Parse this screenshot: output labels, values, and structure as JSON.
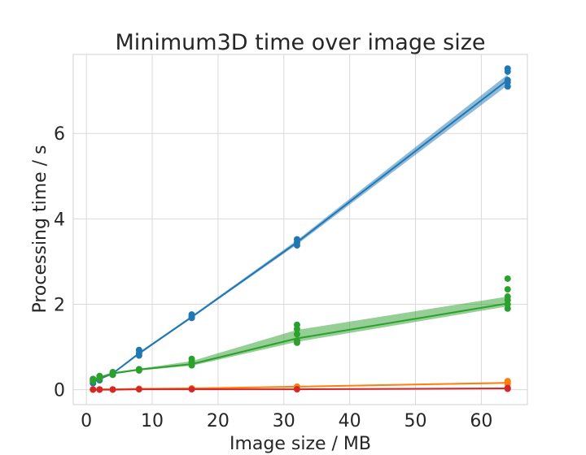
{
  "chart_data": {
    "type": "line",
    "title": "Minimum3D time over image size",
    "xlabel": "Image size / MB",
    "ylabel": "Processing time / s",
    "xlim": [
      -2,
      67
    ],
    "ylim": [
      -0.35,
      7.85
    ],
    "xticks": [
      0,
      10,
      20,
      30,
      40,
      50,
      60
    ],
    "yticks": [
      0,
      2,
      4,
      6
    ],
    "grid": true,
    "legend": "none",
    "x": [
      1,
      2,
      4,
      8,
      16,
      32,
      64
    ],
    "series": [
      {
        "color": "#1f77b4",
        "mean": [
          0.2,
          0.25,
          0.38,
          0.85,
          1.7,
          3.45,
          7.25
        ],
        "ci_low": [
          0.18,
          0.23,
          0.36,
          0.82,
          1.68,
          3.4,
          7.13
        ],
        "ci_high": [
          0.22,
          0.27,
          0.4,
          0.88,
          1.73,
          3.5,
          7.38
        ],
        "points": [
          [
            1,
            0.15
          ],
          [
            1,
            0.2
          ],
          [
            1,
            0.25
          ],
          [
            2,
            0.22
          ],
          [
            2,
            0.27
          ],
          [
            4,
            0.35
          ],
          [
            4,
            0.4
          ],
          [
            8,
            0.8
          ],
          [
            8,
            0.85
          ],
          [
            8,
            0.93
          ],
          [
            16,
            1.68
          ],
          [
            16,
            1.72
          ],
          [
            16,
            1.76
          ],
          [
            32,
            3.38
          ],
          [
            32,
            3.45
          ],
          [
            32,
            3.52
          ],
          [
            64,
            7.1
          ],
          [
            64,
            7.2
          ],
          [
            64,
            7.25
          ],
          [
            64,
            7.45
          ],
          [
            64,
            7.52
          ]
        ]
      },
      {
        "color": "#2ca02c",
        "mean": [
          0.22,
          0.28,
          0.38,
          0.47,
          0.6,
          1.2,
          2.02
        ],
        "ci_low": [
          0.2,
          0.25,
          0.36,
          0.45,
          0.56,
          1.12,
          1.95
        ],
        "ci_high": [
          0.25,
          0.31,
          0.41,
          0.49,
          0.67,
          1.4,
          2.18
        ],
        "points": [
          [
            1,
            0.2
          ],
          [
            1,
            0.25
          ],
          [
            2,
            0.25
          ],
          [
            2,
            0.32
          ],
          [
            4,
            0.35
          ],
          [
            4,
            0.41
          ],
          [
            8,
            0.45
          ],
          [
            8,
            0.48
          ],
          [
            16,
            0.57
          ],
          [
            16,
            0.65
          ],
          [
            16,
            0.72
          ],
          [
            32,
            1.1
          ],
          [
            32,
            1.15
          ],
          [
            32,
            1.3
          ],
          [
            32,
            1.42
          ],
          [
            32,
            1.52
          ],
          [
            64,
            1.9
          ],
          [
            64,
            2.0
          ],
          [
            64,
            2.1
          ],
          [
            64,
            2.18
          ],
          [
            64,
            2.35
          ],
          [
            64,
            2.6
          ]
        ]
      },
      {
        "color": "#ff7f0e",
        "mean": [
          0.01,
          0.01,
          0.01,
          0.02,
          0.03,
          0.07,
          0.16
        ],
        "ci_low": [
          0.0,
          0.0,
          0.0,
          0.01,
          0.02,
          0.06,
          0.14
        ],
        "ci_high": [
          0.02,
          0.02,
          0.02,
          0.03,
          0.04,
          0.08,
          0.18
        ],
        "points": [
          [
            1,
            0.01
          ],
          [
            2,
            0.01
          ],
          [
            4,
            0.01
          ],
          [
            8,
            0.02
          ],
          [
            16,
            0.03
          ],
          [
            32,
            0.07
          ],
          [
            64,
            0.14
          ],
          [
            64,
            0.18
          ],
          [
            64,
            0.2
          ]
        ]
      },
      {
        "color": "#d62728",
        "mean": [
          0.0,
          0.0,
          0.0,
          0.01,
          0.01,
          0.01,
          0.03
        ],
        "ci_low": [
          0.0,
          0.0,
          0.0,
          0.0,
          0.0,
          0.0,
          0.02
        ],
        "ci_high": [
          0.01,
          0.01,
          0.01,
          0.02,
          0.02,
          0.02,
          0.04
        ],
        "points": [
          [
            1,
            0.0
          ],
          [
            2,
            0.0
          ],
          [
            4,
            0.0
          ],
          [
            8,
            0.01
          ],
          [
            16,
            0.01
          ],
          [
            32,
            0.01
          ],
          [
            64,
            0.02
          ],
          [
            64,
            0.04
          ]
        ]
      }
    ]
  }
}
